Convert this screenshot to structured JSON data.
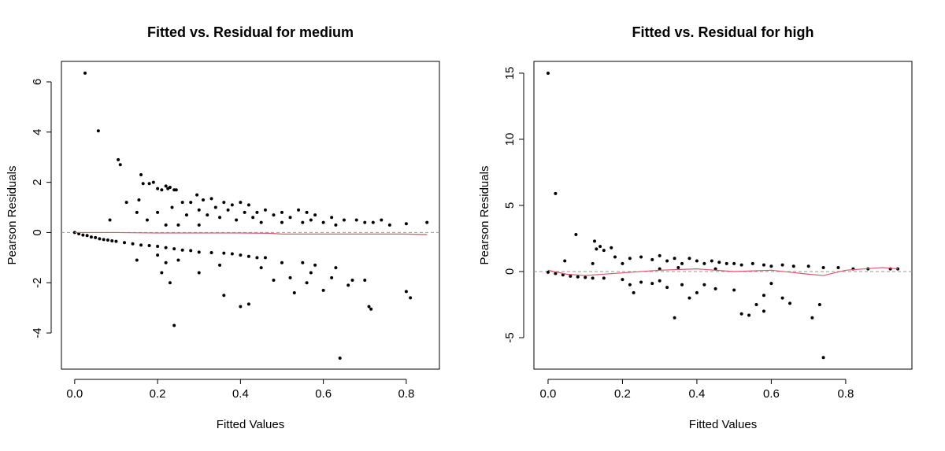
{
  "chart_data": [
    {
      "type": "scatter",
      "title": "Fitted vs. Residual for medium",
      "xlabel": "Fitted Values",
      "ylabel": "Pearson Residuals",
      "color": "#000000",
      "x": [
        0.025,
        0.057,
        0.105,
        0.11,
        0.085,
        0.125,
        0.155,
        0.16,
        0.165,
        0.18,
        0.19,
        0.2,
        0.21,
        0.22,
        0.225,
        0.23,
        0.24,
        0.245,
        0.15,
        0.175,
        0.2,
        0.235,
        0.26,
        0.27,
        0.28,
        0.295,
        0.3,
        0.31,
        0.32,
        0.33,
        0.34,
        0.35,
        0.36,
        0.37,
        0.38,
        0.39,
        0.4,
        0.41,
        0.42,
        0.43,
        0.44,
        0.45,
        0.46,
        0.48,
        0.5,
        0.5,
        0.52,
        0.54,
        0.55,
        0.56,
        0.57,
        0.58,
        0.6,
        0.62,
        0.63,
        0.65,
        0.68,
        0.7,
        0.72,
        0.74,
        0.76,
        0.8,
        0.85,
        0.3,
        0.25,
        0.22,
        0.0,
        0.01,
        0.02,
        0.03,
        0.04,
        0.05,
        0.06,
        0.07,
        0.08,
        0.09,
        0.1,
        0.12,
        0.14,
        0.16,
        0.18,
        0.2,
        0.22,
        0.24,
        0.26,
        0.28,
        0.3,
        0.33,
        0.36,
        0.38,
        0.4,
        0.42,
        0.44,
        0.46,
        0.15,
        0.2,
        0.22,
        0.25,
        0.23,
        0.24,
        0.21,
        0.3,
        0.35,
        0.36,
        0.4,
        0.42,
        0.45,
        0.48,
        0.5,
        0.52,
        0.53,
        0.55,
        0.56,
        0.57,
        0.6,
        0.63,
        0.64,
        0.66,
        0.67,
        0.7,
        0.71,
        0.715,
        0.8,
        0.81,
        0.58,
        0.62
      ],
      "y": [
        6.35,
        4.05,
        2.9,
        2.7,
        0.5,
        1.2,
        1.3,
        2.3,
        1.95,
        1.95,
        2.0,
        1.75,
        1.7,
        1.85,
        1.75,
        1.8,
        1.7,
        1.7,
        0.8,
        0.5,
        0.8,
        1.0,
        1.2,
        0.7,
        1.2,
        1.5,
        0.9,
        1.3,
        0.7,
        1.35,
        1.0,
        0.6,
        1.2,
        0.9,
        1.1,
        0.5,
        1.2,
        0.8,
        1.1,
        0.6,
        0.8,
        0.4,
        0.9,
        0.7,
        0.8,
        0.4,
        0.6,
        0.9,
        0.4,
        0.8,
        0.5,
        0.7,
        0.4,
        0.6,
        0.3,
        0.5,
        0.5,
        0.4,
        0.4,
        0.5,
        0.3,
        0.35,
        0.4,
        0.3,
        0.3,
        0.3,
        0,
        -0.05,
        -0.1,
        -0.12,
        -0.18,
        -0.2,
        -0.25,
        -0.28,
        -0.3,
        -0.33,
        -0.35,
        -0.4,
        -0.45,
        -0.5,
        -0.52,
        -0.55,
        -0.6,
        -0.65,
        -0.7,
        -0.72,
        -0.78,
        -0.8,
        -0.82,
        -0.85,
        -0.9,
        -0.95,
        -1.0,
        -1.0,
        -1.1,
        -0.9,
        -1.2,
        -1.1,
        -2.0,
        -3.7,
        -1.6,
        -1.6,
        -1.3,
        -2.5,
        -2.95,
        -2.85,
        -1.4,
        -1.9,
        -1.2,
        -1.8,
        -2.4,
        -1.2,
        -2.0,
        -1.6,
        -2.3,
        -1.4,
        -5.0,
        -2.1,
        -1.9,
        -1.9,
        -2.95,
        -3.05,
        -2.35,
        -2.6,
        -1.3,
        -1.8
      ],
      "smooth": {
        "color": "#DF536B",
        "x": [
          0,
          0.1,
          0.2,
          0.3,
          0.4,
          0.47,
          0.5,
          0.6,
          0.7,
          0.8,
          0.85
        ],
        "y": [
          0,
          0.0,
          -0.02,
          -0.02,
          -0.02,
          -0.03,
          -0.06,
          -0.06,
          -0.06,
          -0.06,
          -0.08
        ]
      },
      "reference_line": {
        "y": 0,
        "color": "#999999"
      },
      "xlim": [
        -0.032,
        0.88
      ],
      "ylim": [
        -5.44,
        6.815
      ],
      "xticks": [
        {
          "value": 0,
          "label": "0.0"
        },
        0.2,
        0.4,
        0.6,
        0.8
      ],
      "yticks": [
        -4,
        -2,
        0,
        2,
        4,
        6
      ]
    },
    {
      "type": "scatter",
      "title": "Fitted vs. Residual for high",
      "xlabel": "Fitted Values",
      "ylabel": "Pearson Residuals",
      "color": "#000000",
      "x": [
        0.0,
        0.02,
        0.075,
        0.045,
        0.12,
        0.125,
        0.13,
        0.14,
        0.15,
        0.17,
        0.18,
        0.2,
        0.22,
        0.25,
        0.28,
        0.3,
        0.32,
        0.34,
        0.36,
        0.38,
        0.4,
        0.42,
        0.44,
        0.46,
        0.48,
        0.5,
        0.52,
        0.55,
        0.58,
        0.6,
        0.63,
        0.66,
        0.7,
        0.74,
        0.78,
        0.82,
        0.86,
        0.92,
        0.94,
        0.3,
        0.35,
        0.45,
        0.0,
        0.02,
        0.04,
        0.06,
        0.08,
        0.1,
        0.12,
        0.15,
        0.2,
        0.22,
        0.23,
        0.25,
        0.28,
        0.3,
        0.32,
        0.34,
        0.36,
        0.38,
        0.4,
        0.42,
        0.45,
        0.5,
        0.52,
        0.54,
        0.56,
        0.58,
        0.6,
        0.63,
        0.65,
        0.71,
        0.73,
        0.74,
        0.58
      ],
      "y": [
        15.0,
        5.9,
        2.8,
        0.8,
        0.6,
        2.3,
        1.7,
        1.9,
        1.6,
        1.8,
        1.1,
        0.6,
        1.0,
        1.1,
        0.9,
        1.2,
        0.8,
        1.0,
        0.6,
        1.0,
        0.8,
        0.6,
        0.8,
        0.7,
        0.6,
        0.6,
        0.5,
        0.6,
        0.5,
        0.4,
        0.5,
        0.4,
        0.4,
        0.3,
        0.3,
        0.2,
        0.2,
        0.2,
        0.2,
        0.2,
        0.3,
        0.2,
        -0.05,
        -0.15,
        -0.25,
        -0.35,
        -0.4,
        -0.45,
        -0.5,
        -0.5,
        -0.6,
        -1.0,
        -1.6,
        -0.8,
        -0.9,
        -0.7,
        -1.2,
        -3.5,
        -1.0,
        -2.0,
        -1.6,
        -1.0,
        -1.3,
        -1.4,
        -3.2,
        -3.3,
        -2.5,
        -1.8,
        -0.9,
        -2.0,
        -2.4,
        -3.5,
        -2.5,
        -6.5,
        -3.0
      ],
      "smooth": {
        "color": "#DF536B",
        "x": [
          0,
          0.05,
          0.1,
          0.2,
          0.3,
          0.4,
          0.5,
          0.6,
          0.7,
          0.74,
          0.8,
          0.9,
          0.94
        ],
        "y": [
          0.1,
          -0.2,
          -0.3,
          -0.1,
          0.1,
          0.2,
          0.0,
          0.1,
          -0.2,
          -0.3,
          0.1,
          0.3,
          0.2
        ]
      },
      "reference_line": {
        "y": 0,
        "color": "#999999"
      },
      "xlim": [
        -0.038,
        0.978
      ],
      "ylim": [
        -7.38,
        15.89
      ],
      "xticks": [
        {
          "value": 0,
          "label": "0.0"
        },
        0.2,
        0.4,
        0.6,
        0.8
      ],
      "yticks": [
        -5,
        0,
        5,
        10,
        15
      ]
    }
  ]
}
